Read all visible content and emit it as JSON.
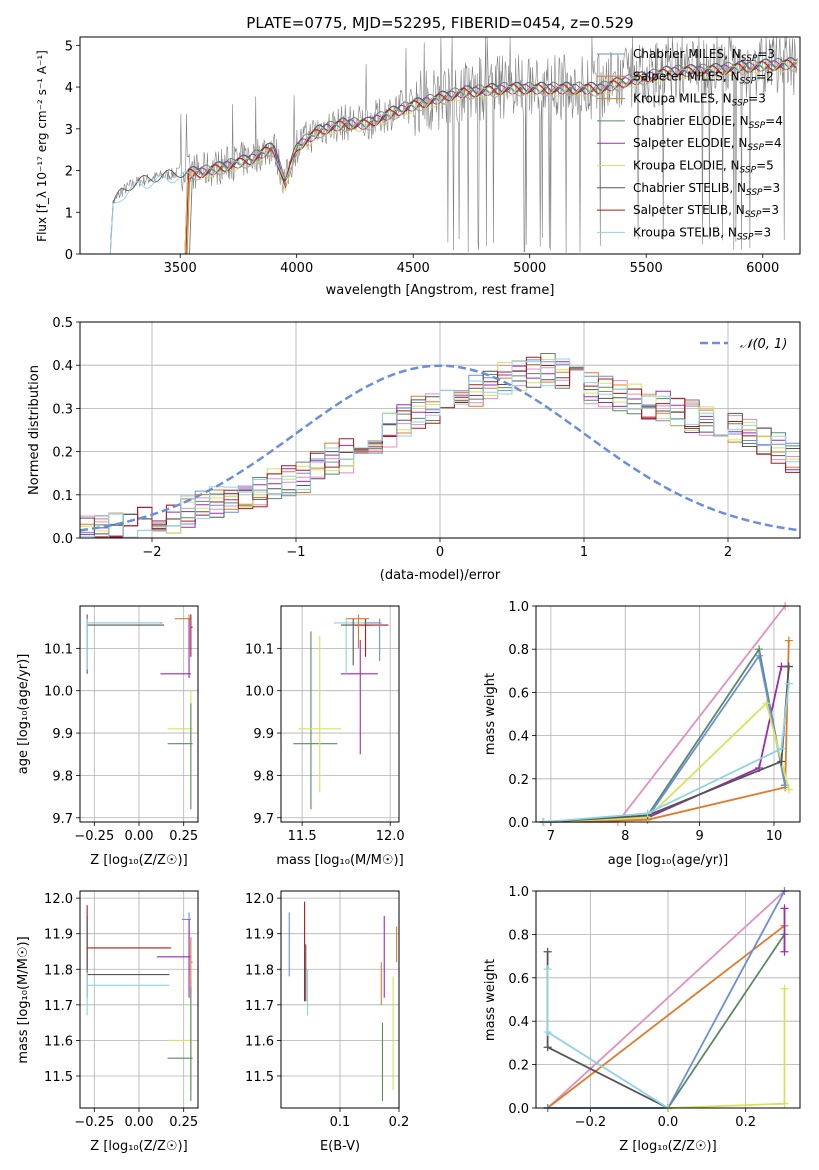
{
  "colors": {
    "palette": [
      "#6a8fdd",
      "#e07b2b",
      "#e07b2b",
      "#5b8a64",
      "#9a2ab3",
      "#d7e35a",
      "#555555",
      "#a81c1c",
      "#8fd3e3"
    ],
    "gaussian": "#6a8fdd",
    "pink": "#e38fbf"
  },
  "chart_data": [
    {
      "id": "spectrum",
      "type": "line",
      "title": "PLATE=0775, MJD=52295, FIBERID=0454, z=0.529",
      "xlabel": "wavelength [Angstrom, rest frame]",
      "ylabel": "Flux [f_λ 10⁻¹⁷ erg cm⁻² s⁻¹ A⁻¹]",
      "xlim": [
        3070,
        6160
      ],
      "ylim": [
        0,
        5.2
      ],
      "xticks": [
        "3500",
        "4000",
        "4500",
        "5000",
        "5500",
        "6000"
      ],
      "yticks": [
        "0",
        "1",
        "2",
        "3",
        "4",
        "5"
      ],
      "legend_position": "top-right",
      "legend": [
        {
          "base": "Chabrier MILES, N",
          "n": "3"
        },
        {
          "base": "Salpeter MILES, N",
          "n": "2"
        },
        {
          "base": "Kroupa MILES, N",
          "n": "3"
        },
        {
          "base": "Chabrier ELODIE, N",
          "n": "4"
        },
        {
          "base": "Salpeter ELODIE, N",
          "n": "4"
        },
        {
          "base": "Kroupa ELODIE, N",
          "n": "5"
        },
        {
          "base": "Chabrier STELIB, N",
          "n": "3"
        },
        {
          "base": "Salpeter STELIB, N",
          "n": "3"
        },
        {
          "base": "Kroupa STELIB, N",
          "n": "3"
        }
      ],
      "legend_sub": "SSP",
      "model_level": [
        [
          3200,
          0
        ],
        [
          3210,
          1.2
        ],
        [
          3250,
          1.5
        ],
        [
          3300,
          1.7
        ],
        [
          3400,
          1.85
        ],
        [
          3500,
          1.95
        ],
        [
          3600,
          2.0
        ],
        [
          3700,
          2.15
        ],
        [
          3800,
          2.3
        ],
        [
          3900,
          2.6
        ],
        [
          3950,
          1.7
        ],
        [
          4000,
          2.6
        ],
        [
          4100,
          3.0
        ],
        [
          4200,
          3.15
        ],
        [
          4300,
          3.15
        ],
        [
          4400,
          3.4
        ],
        [
          4500,
          3.6
        ],
        [
          4700,
          3.9
        ],
        [
          4900,
          4.0
        ],
        [
          5100,
          4.0
        ],
        [
          5300,
          4.0
        ],
        [
          5400,
          4.15
        ],
        [
          5600,
          4.4
        ],
        [
          5800,
          4.45
        ],
        [
          6000,
          4.55
        ],
        [
          6150,
          4.6
        ]
      ]
    },
    {
      "id": "residuals",
      "type": "histogram",
      "xlabel": "(data-model)/error",
      "ylabel": "Normed distribution",
      "xlim": [
        -2.5,
        2.5
      ],
      "ylim": [
        0,
        0.5
      ],
      "xticks": [
        "−2",
        "−1",
        "0",
        "1",
        "2"
      ],
      "yticks": [
        "0.0",
        "0.1",
        "0.2",
        "0.3",
        "0.4",
        "0.5"
      ],
      "legend": "𝒩(0, 1)",
      "legend_position": "top-right",
      "bin_width": 0.1,
      "base_values": [
        0.02,
        0.02,
        0.03,
        0.03,
        0.04,
        0.05,
        0.05,
        0.06,
        0.07,
        0.08,
        0.09,
        0.1,
        0.11,
        0.12,
        0.13,
        0.14,
        0.16,
        0.18,
        0.19,
        0.21,
        0.22,
        0.25,
        0.27,
        0.29,
        0.3,
        0.31,
        0.33,
        0.34,
        0.35,
        0.37,
        0.38,
        0.38,
        0.39,
        0.38,
        0.37,
        0.35,
        0.34,
        0.33,
        0.32,
        0.31,
        0.3,
        0.29,
        0.28,
        0.27,
        0.26,
        0.25,
        0.24,
        0.22,
        0.21,
        0.19
      ]
    },
    {
      "id": "age-vs-z",
      "type": "errorbar",
      "xlabel": "Z [log₁₀(Z/Z☉)]",
      "ylabel": "age  [log₁₀(age/yr)]",
      "xlim": [
        -0.33,
        0.33
      ],
      "ylim": [
        9.69,
        10.2
      ],
      "xticks": [
        {
          "v": -0.25,
          "t": "−0.25"
        },
        {
          "v": 0.0,
          "t": "0.00"
        },
        {
          "v": 0.25,
          "t": "0.25"
        }
      ],
      "yticks": [
        {
          "v": 9.7,
          "t": "9.7"
        },
        {
          "v": 9.8,
          "t": "9.8"
        },
        {
          "v": 9.9,
          "t": "9.9"
        },
        {
          "v": 10.0,
          "t": "10.0"
        },
        {
          "v": 10.1,
          "t": "10.1"
        }
      ],
      "points": [
        {
          "c": 0,
          "x": -0.29,
          "y": 10.16,
          "xl": -0.29,
          "xh": 0.13,
          "yl": 10.16,
          "yh": 10.16
        },
        {
          "c": 6,
          "x": -0.29,
          "y": 10.155,
          "xl": -0.29,
          "xh": 0.14,
          "yl": 10.04,
          "yh": 10.18
        },
        {
          "c": 8,
          "x": -0.29,
          "y": 10.16,
          "xl": -0.29,
          "xh": 0.12,
          "yl": 10.05,
          "yh": 10.17
        },
        {
          "c": 1,
          "x": 0.28,
          "y": 10.17,
          "xl": 0.2,
          "xh": 0.29,
          "yl": 10.1,
          "yh": 10.18
        },
        {
          "c": 4,
          "x": 0.28,
          "y": 10.04,
          "xl": 0.12,
          "xh": 0.29,
          "yl": 10.03,
          "yh": 10.17
        },
        {
          "c": 5,
          "x": 0.29,
          "y": 9.91,
          "xl": 0.16,
          "xh": 0.3,
          "yl": 9.86,
          "yh": 10.0
        },
        {
          "c": 3,
          "x": 0.29,
          "y": 9.875,
          "xl": 0.16,
          "xh": 0.3,
          "yl": 9.72,
          "yh": 9.97
        },
        {
          "c": 7,
          "x": 0.29,
          "y": 10.15,
          "xl": 0.29,
          "xh": 0.3,
          "yl": 10.08,
          "yh": 10.18
        }
      ]
    },
    {
      "id": "age-vs-mass",
      "type": "errorbar",
      "xlabel": "mass [log₁₀(M/M☉)]",
      "ylabel": "",
      "xlim": [
        11.38,
        12.05
      ],
      "ylim": [
        9.69,
        10.2
      ],
      "xticks": [
        {
          "v": 11.5,
          "t": "11.5"
        },
        {
          "v": 12.0,
          "t": "12.0"
        }
      ],
      "yticks": [
        {
          "v": 9.7,
          "t": "9.7"
        },
        {
          "v": 9.8,
          "t": "9.8"
        },
        {
          "v": 9.9,
          "t": "9.9"
        },
        {
          "v": 10.0,
          "t": "10.0"
        },
        {
          "v": 10.1,
          "t": "10.1"
        }
      ],
      "points": [
        {
          "c": 3,
          "x": 11.55,
          "y": 9.875,
          "xl": 11.45,
          "xh": 11.7,
          "yl": 9.72,
          "yh": 10.14
        },
        {
          "c": 5,
          "x": 11.6,
          "y": 9.91,
          "xl": 11.48,
          "xh": 11.72,
          "yl": 9.76,
          "yh": 10.13
        },
        {
          "c": 4,
          "x": 11.83,
          "y": 10.04,
          "xl": 11.72,
          "xh": 11.93,
          "yl": 9.85,
          "yh": 10.12
        },
        {
          "c": 8,
          "x": 11.75,
          "y": 10.16,
          "xl": 11.68,
          "xh": 11.95,
          "yl": 10.04,
          "yh": 10.17
        },
        {
          "c": 6,
          "x": 11.79,
          "y": 10.155,
          "xl": 11.72,
          "xh": 11.9,
          "yl": 10.06,
          "yh": 10.17
        },
        {
          "c": 7,
          "x": 11.86,
          "y": 10.155,
          "xl": 11.8,
          "xh": 11.99,
          "yl": 10.08,
          "yh": 10.17
        },
        {
          "c": 0,
          "x": 11.94,
          "y": 10.16,
          "xl": 11.85,
          "xh": 11.95,
          "yl": 10.07,
          "yh": 10.17
        },
        {
          "c": 1,
          "x": 11.82,
          "y": 10.17,
          "xl": 11.75,
          "xh": 11.88,
          "yl": 10.1,
          "yh": 10.18
        }
      ]
    },
    {
      "id": "weight-vs-age",
      "type": "line",
      "xlabel": "age  [log₁₀(age/yr)]",
      "ylabel": "mass weight",
      "xlim": [
        6.8,
        10.35
      ],
      "ylim": [
        0,
        1.0
      ],
      "xticks": [
        {
          "v": 7,
          "t": "7"
        },
        {
          "v": 8,
          "t": "8"
        },
        {
          "v": 9,
          "t": "9"
        },
        {
          "v": 10,
          "t": "10"
        }
      ],
      "yticks": [
        {
          "v": 0.0,
          "t": "0.0"
        },
        {
          "v": 0.2,
          "t": "0.2"
        },
        {
          "v": 0.4,
          "t": "0.4"
        },
        {
          "v": 0.6,
          "t": "0.6"
        },
        {
          "v": 0.8,
          "t": "0.8"
        },
        {
          "v": 1.0,
          "t": "1.0"
        }
      ],
      "series": [
        {
          "c": "pink",
          "pts": [
            [
              6.9,
              0.0
            ],
            [
              7.9,
              0.0
            ],
            [
              10.15,
              1.0
            ]
          ]
        },
        {
          "c": 1,
          "pts": [
            [
              6.9,
              0.0
            ],
            [
              8.3,
              0.01
            ],
            [
              10.15,
              0.16
            ],
            [
              10.2,
              0.84
            ]
          ]
        },
        {
          "c": 4,
          "pts": [
            [
              6.9,
              0.0
            ],
            [
              8.3,
              0.02
            ],
            [
              9.8,
              0.25
            ],
            [
              10.1,
              0.72
            ],
            [
              10.2,
              0.72
            ]
          ]
        },
        {
          "c": 3,
          "pts": [
            [
              6.9,
              0.0
            ],
            [
              8.3,
              0.03
            ],
            [
              9.8,
              0.8
            ],
            [
              10.15,
              0.17
            ]
          ]
        },
        {
          "c": 0,
          "pts": [
            [
              6.9,
              0.0
            ],
            [
              8.3,
              0.02
            ],
            [
              9.8,
              0.77
            ],
            [
              10.15,
              0.17
            ]
          ]
        },
        {
          "c": 5,
          "pts": [
            [
              6.9,
              0.0
            ],
            [
              8.3,
              0.02
            ],
            [
              9.9,
              0.55
            ],
            [
              10.2,
              0.15
            ]
          ]
        },
        {
          "c": 6,
          "pts": [
            [
              6.9,
              0.0
            ],
            [
              8.3,
              0.03
            ],
            [
              10.1,
              0.28
            ],
            [
              10.2,
              0.72
            ]
          ]
        },
        {
          "c": 8,
          "pts": [
            [
              6.9,
              0.0
            ],
            [
              8.3,
              0.04
            ],
            [
              10.1,
              0.34
            ],
            [
              10.2,
              0.64
            ]
          ]
        }
      ]
    },
    {
      "id": "mass-vs-z",
      "type": "errorbar",
      "xlabel": "Z [log₁₀(Z/Z☉)]",
      "ylabel": "mass [log₁₀(M/M☉)]",
      "xlim": [
        -0.33,
        0.33
      ],
      "ylim": [
        11.41,
        12.02
      ],
      "xticks": [
        {
          "v": -0.25,
          "t": "−0.25"
        },
        {
          "v": 0.0,
          "t": "0.00"
        },
        {
          "v": 0.25,
          "t": "0.25"
        }
      ],
      "yticks": [
        {
          "v": 11.5,
          "t": "11.5"
        },
        {
          "v": 11.6,
          "t": "11.6"
        },
        {
          "v": 11.7,
          "t": "11.7"
        },
        {
          "v": 11.8,
          "t": "11.8"
        },
        {
          "v": 11.9,
          "t": "11.9"
        },
        {
          "v": 12.0,
          "t": "12.0"
        }
      ],
      "points": [
        {
          "c": 7,
          "x": -0.29,
          "y": 11.86,
          "xl": -0.29,
          "xh": 0.18,
          "yl": 11.8,
          "yh": 11.98
        },
        {
          "c": 6,
          "x": -0.29,
          "y": 11.785,
          "xl": -0.29,
          "xh": 0.17,
          "yl": 11.72,
          "yh": 11.95
        },
        {
          "c": 8,
          "x": -0.29,
          "y": 11.755,
          "xl": -0.29,
          "xh": 0.17,
          "yl": 11.67,
          "yh": 11.79
        },
        {
          "c": 0,
          "x": 0.28,
          "y": 11.94,
          "xl": 0.24,
          "xh": 0.29,
          "yl": 11.78,
          "yh": 11.96
        },
        {
          "c": 4,
          "x": 0.28,
          "y": 11.835,
          "xl": 0.1,
          "xh": 0.29,
          "yl": 11.72,
          "yh": 11.94
        },
        {
          "c": 5,
          "x": 0.29,
          "y": 11.6,
          "xl": 0.16,
          "xh": 0.3,
          "yl": 11.46,
          "yh": 11.77
        },
        {
          "c": 3,
          "x": 0.29,
          "y": 11.55,
          "xl": 0.16,
          "xh": 0.3,
          "yl": 11.43,
          "yh": 11.75
        },
        {
          "c": 1,
          "x": 0.29,
          "y": 11.82,
          "xl": 0.29,
          "xh": 0.3,
          "yl": 11.75,
          "yh": 11.89
        }
      ]
    },
    {
      "id": "mass-vs-ebv",
      "type": "errorbar",
      "xlabel": "E(B-V)",
      "ylabel": "",
      "xlim": [
        0.0,
        0.2
      ],
      "ylim": [
        11.41,
        12.02
      ],
      "xticks": [
        {
          "v": 0.1,
          "t": "0.1"
        },
        {
          "v": 0.2,
          "t": "0.2"
        }
      ],
      "yticks": [
        {
          "v": 11.5,
          "t": "11.5"
        },
        {
          "v": 11.6,
          "t": "11.6"
        },
        {
          "v": 11.7,
          "t": "11.7"
        },
        {
          "v": 11.8,
          "t": "11.8"
        },
        {
          "v": 11.9,
          "t": "11.9"
        },
        {
          "v": 12.0,
          "t": "12.0"
        }
      ],
      "points": [
        {
          "c": 0,
          "x": 0.014,
          "y": 11.87,
          "xl": 0.014,
          "xh": 0.014,
          "yl": 11.78,
          "yh": 11.96
        },
        {
          "c": 7,
          "x": 0.04,
          "y": 11.85,
          "xl": 0.04,
          "xh": 0.04,
          "yl": 11.71,
          "yh": 11.99
        },
        {
          "c": 6,
          "x": 0.042,
          "y": 11.79,
          "xl": 0.042,
          "xh": 0.042,
          "yl": 11.71,
          "yh": 11.87
        },
        {
          "c": 8,
          "x": 0.045,
          "y": 11.74,
          "xl": 0.045,
          "xh": 0.045,
          "yl": 11.67,
          "yh": 11.8
        },
        {
          "c": 1,
          "x": 0.17,
          "y": 11.76,
          "xl": 0.17,
          "xh": 0.17,
          "yl": 11.7,
          "yh": 11.82
        },
        {
          "c": 4,
          "x": 0.175,
          "y": 11.83,
          "xl": 0.175,
          "xh": 0.175,
          "yl": 11.72,
          "yh": 11.95
        },
        {
          "c": 3,
          "x": 0.172,
          "y": 11.55,
          "xl": 0.172,
          "xh": 0.172,
          "yl": 11.43,
          "yh": 11.65
        },
        {
          "c": 5,
          "x": 0.19,
          "y": 11.6,
          "xl": 0.19,
          "xh": 0.19,
          "yl": 11.46,
          "yh": 11.78
        },
        {
          "c": 1,
          "x": 0.196,
          "y": 11.87,
          "xl": 0.196,
          "xh": 0.196,
          "yl": 11.82,
          "yh": 11.92
        }
      ]
    },
    {
      "id": "weight-vs-z",
      "type": "line",
      "xlabel": "Z [log₁₀(Z/Z☉)]",
      "ylabel": "mass weight",
      "xlim": [
        -0.34,
        0.34
      ],
      "ylim": [
        0,
        1.0
      ],
      "xticks": [
        {
          "v": -0.2,
          "t": "−0.2"
        },
        {
          "v": 0.0,
          "t": "0.0"
        },
        {
          "v": 0.2,
          "t": "0.2"
        }
      ],
      "yticks": [
        {
          "v": 0.0,
          "t": "0.0"
        },
        {
          "v": 0.2,
          "t": "0.2"
        },
        {
          "v": 0.4,
          "t": "0.4"
        },
        {
          "v": 0.6,
          "t": "0.6"
        },
        {
          "v": 0.8,
          "t": "0.8"
        },
        {
          "v": 1.0,
          "t": "1.0"
        }
      ],
      "series": [
        {
          "c": "pink",
          "pts": [
            [
              -0.31,
              0.0
            ],
            [
              0.3,
              1.0
            ]
          ]
        },
        {
          "c": 1,
          "pts": [
            [
              -0.31,
              0.0
            ],
            [
              0.3,
              0.84
            ]
          ]
        },
        {
          "c": 3,
          "pts": [
            [
              -0.31,
              0.0
            ],
            [
              0.0,
              0.0
            ],
            [
              0.3,
              0.8
            ]
          ]
        },
        {
          "c": 0,
          "pts": [
            [
              -0.31,
              0.0
            ],
            [
              0.0,
              0.0
            ],
            [
              0.3,
              1.0
            ]
          ]
        },
        {
          "c": 6,
          "pts": [
            [
              -0.31,
              0.72
            ],
            [
              -0.31,
              0.28
            ],
            [
              0.0,
              0.0
            ]
          ]
        },
        {
          "c": 8,
          "pts": [
            [
              -0.31,
              0.64
            ],
            [
              -0.31,
              0.35
            ],
            [
              0.0,
              0.0
            ]
          ]
        },
        {
          "c": 5,
          "pts": [
            [
              0.0,
              0.0
            ],
            [
              0.3,
              0.02
            ],
            [
              0.3,
              0.55
            ]
          ]
        },
        {
          "c": 4,
          "pts": [
            [
              0.3,
              0.72
            ],
            [
              0.3,
              0.92
            ]
          ]
        }
      ]
    }
  ]
}
